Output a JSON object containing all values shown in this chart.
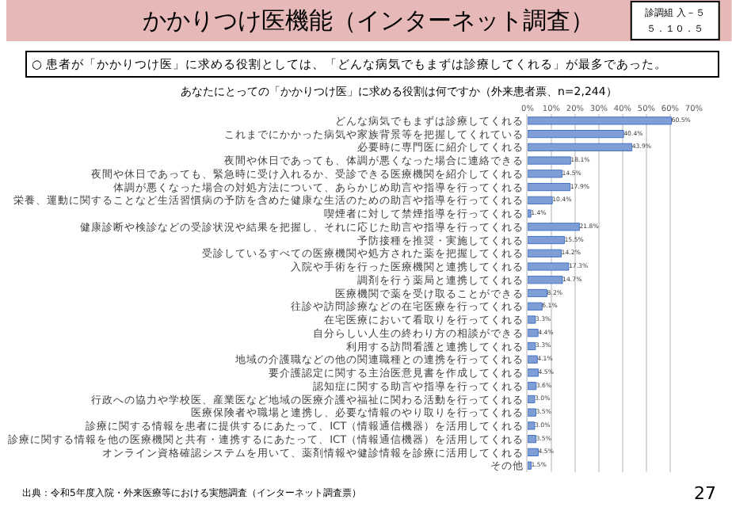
{
  "chart_data": {
    "type": "bar",
    "orientation": "horizontal",
    "title": "かかりつけ医機能（インターネット調査）",
    "subtitle": "○ 患者が「かかりつけ医」に求める役割としては、「どんな病気でもまずは診療してくれる」が最多であった。",
    "annotations": [
      "診調組 入－５",
      "５．１０．５",
      "あなたにとっての「かかりつけ医」に求める役割は何ですか（外来患者票、n=2,244）",
      "出典：令和5年度入院・外来医療等における実態調査（インターネット調査票）",
      "27"
    ],
    "categories": [
      "どんな病気でもまずは診療してくれる",
      "これまでにかかった病気や家族背景等を把握してくれている",
      "必要時に専門医に紹介してくれる",
      "夜間や休日であっても、体調が悪くなった場合に連絡できる",
      "夜間や休日であっても、緊急時に受け入れるか、受診できる医療機関を紹介してくれる",
      "体調が悪くなった場合の対処方法について、あらかじめ助言や指導を行ってくれる",
      "栄養、運動に関することなど生活習慣病の予防を含めた健康な生活のための助言や指導を行ってくれる",
      "喫煙者に対して禁煙指導を行ってくれる",
      "健康診断や検診などの受診状況や結果を把握し、それに応じた助言や指導を行ってくれる",
      "予防接種を推奨・実施してくれる",
      "受診しているすべての医療機関や処方された薬を把握してくれる",
      "入院や手術を行った医療機関と連携してくれる",
      "調剤を行う薬局と連携してくれる",
      "医療機関で薬を受け取ることができる",
      "往診や訪問診療などの在宅医療を行ってくれる",
      "在宅医療において看取りを行ってくれる",
      "自分らしい人生の終わり方の相談ができる",
      "利用する訪問看護と連携してくれる",
      "地域の介護職などの他の関連職種との連携を行ってくれる",
      "要介護認定に関する主治医意見書を作成してくれる",
      "認知症に関する助言や指導を行ってくれる",
      "行政への協力や学校医、産業医など地域の医療介護や福祉に関わる活動を行ってくれる",
      "医療保険者や職場と連携し、必要な情報のやり取りを行ってくれる",
      "診療に関する情報を患者に提供するにあたって、ICT（情報通信機器）を活用してくれる",
      "診療に関する情報を他の医療機関と共有・連携するにあたって、ICT（情報通信機器）を活用してくれる",
      "オンライン資格確認システムを用いて、薬剤情報や健診情報を診療に活用してくれる",
      "その他"
    ],
    "values": [
      60.5,
      40.4,
      43.9,
      18.1,
      14.5,
      17.9,
      10.4,
      1.4,
      21.8,
      15.5,
      14.2,
      17.3,
      14.7,
      8.2,
      6.1,
      3.3,
      4.4,
      3.3,
      4.1,
      4.5,
      3.6,
      3.0,
      3.5,
      3.0,
      3.5,
      4.5,
      1.5
    ],
    "value_labels": [
      "60.5%",
      "40.4%",
      "43.9%",
      "18.1%",
      "14.5%",
      "17.9%",
      "10.4%",
      "1.4%",
      "21.8%",
      "15.5%",
      "14.2%",
      "17.3%",
      "14.7%",
      "8.2%",
      "6.1%",
      "3.3%",
      "4.4%",
      "3.3%",
      "4.1%",
      "4.5%",
      "3.6%",
      "3.0%",
      "3.5%",
      "3.0%",
      "3.5%",
      "4.5%",
      "1.5%"
    ],
    "color": "#7f9ed6",
    "xlim": [
      0,
      70
    ],
    "xticks": [
      {
        "value": 0,
        "label": "0%"
      },
      {
        "value": 10,
        "label": "10%"
      },
      {
        "value": 20,
        "label": "20%"
      },
      {
        "value": 30,
        "label": "30%"
      },
      {
        "value": 40,
        "label": "40%"
      },
      {
        "value": 50,
        "label": "50%"
      },
      {
        "value": 60,
        "label": "60%"
      },
      {
        "value": 70,
        "label": "70%"
      }
    ],
    "grid": "x"
  }
}
